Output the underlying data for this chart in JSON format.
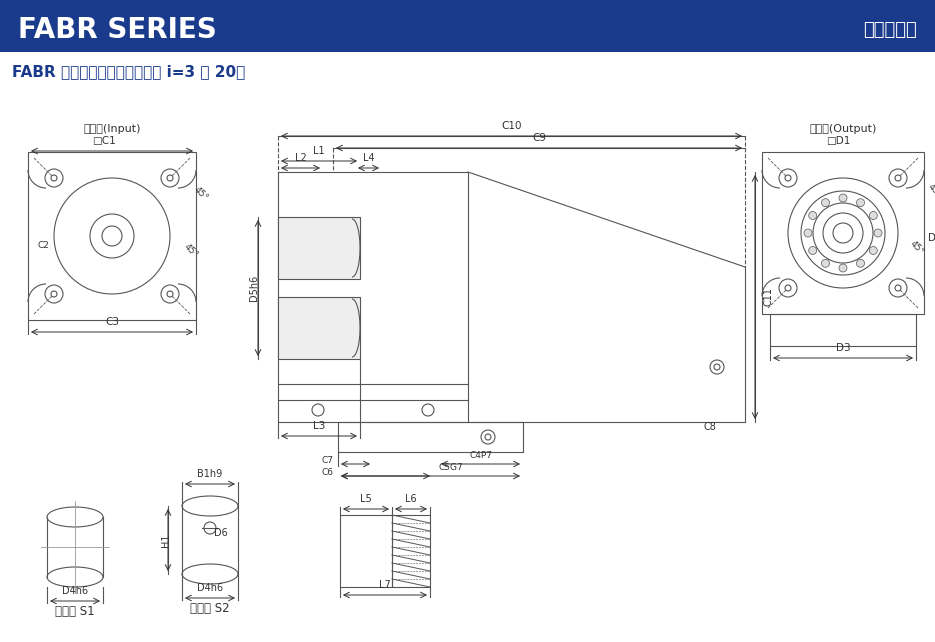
{
  "header_bg_color": "#1a3a8c",
  "header_text_left": "FABR SERIES",
  "header_text_right": "行星减速机",
  "header_text_color": "#ffffff",
  "subtitle": "FABR 系列尺寸（单节，减速比 i=3 ～ 20）",
  "subtitle_color": "#1a3a8c",
  "line_color": "#555555",
  "dim_color": "#333333",
  "bg_color": "#ffffff"
}
